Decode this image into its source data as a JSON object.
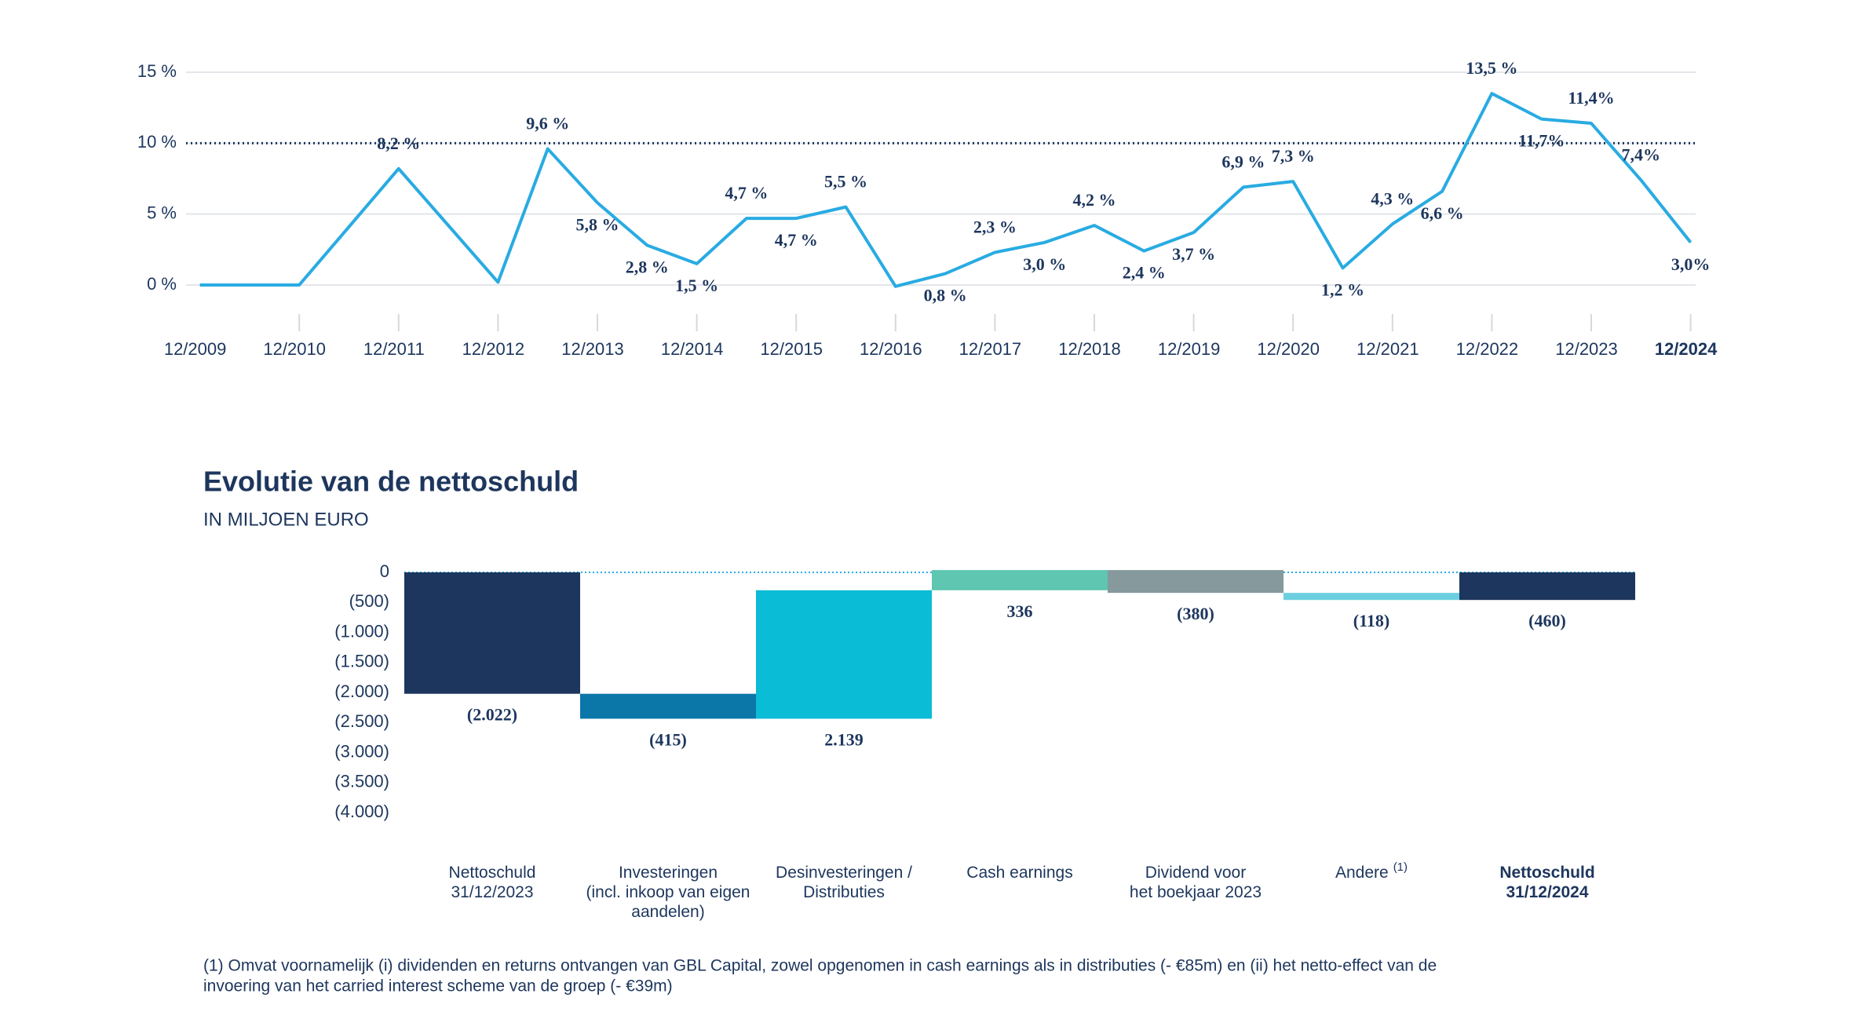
{
  "chart_data": [
    {
      "type": "line",
      "categories": [
        "12/2009",
        null,
        "12/2010",
        null,
        "12/2011",
        null,
        "12/2012",
        null,
        "12/2013",
        null,
        "12/2014",
        null,
        "12/2015",
        null,
        "12/2016",
        null,
        "12/2017",
        null,
        "12/2018",
        null,
        "12/2019",
        null,
        "12/2020",
        null,
        "12/2021",
        null,
        "12/2022",
        null,
        "12/2023",
        null,
        "12/2024"
      ],
      "series": [
        {
          "color": "#29abe2",
          "values": [
            0,
            0,
            0,
            4.1,
            8.2,
            4.2,
            0.2,
            9.6,
            5.8,
            2.8,
            1.5,
            4.7,
            4.7,
            5.5,
            -0.1,
            0.8,
            2.3,
            3.0,
            4.2,
            2.4,
            3.7,
            6.9,
            7.3,
            1.2,
            4.3,
            6.6,
            13.5,
            11.7,
            11.4,
            7.4,
            3.0
          ],
          "value_labels": [
            null,
            null,
            null,
            null,
            "8,2 %",
            null,
            null,
            "9,6 %",
            "5,8 %",
            "2,8 %",
            "1,5 %",
            "4,7 %",
            "4,7 %",
            "5,5 %",
            null,
            "0,8 %",
            "2,3 %",
            "3,0 %",
            "4,2 %",
            "2,4 %",
            "3,7 %",
            "6,9 %",
            "7,3 %",
            "1,2 %",
            "4,3 %",
            "6,6 %",
            "13,5 %",
            "11,7%",
            "11,4%",
            "7,4%",
            "3,0%"
          ]
        }
      ],
      "ylim": [
        -2,
        15
      ],
      "yticks": [
        {
          "value": 0,
          "label": "0 %"
        },
        {
          "value": 5,
          "label": "5 %"
        },
        {
          "value": 10,
          "label": "10 %"
        },
        {
          "value": 15,
          "label": "15 %"
        }
      ],
      "reference_line": 10,
      "grid": true
    },
    {
      "type": "waterfall",
      "title": "Evolutie van de nettoschuld",
      "subtitle": "IN MILJOEN EURO",
      "categories": [
        [
          "Nettoschuld",
          "31/12/2023"
        ],
        [
          "Investeringen",
          "(incl. inkoop van eigen",
          "aandelen)"
        ],
        [
          "Desinvesteringen /",
          "Distributies"
        ],
        [
          "Cash earnings"
        ],
        [
          "Dividend voor",
          "het boekjaar 2023"
        ],
        [
          "Andere"
        ],
        [
          "Nettoschuld",
          "31/12/2024"
        ]
      ],
      "category_superscripts": [
        null,
        null,
        null,
        null,
        null,
        "(1)",
        null
      ],
      "measures": [
        "absolute",
        "relative",
        "relative",
        "relative",
        "relative",
        "relative",
        "total"
      ],
      "values": [
        -2022,
        -415,
        2139,
        336,
        -380,
        -118,
        -460
      ],
      "value_labels": [
        "(2.022)",
        "(415)",
        "2.139",
        "336",
        "(380)",
        "(118)",
        "(460)"
      ],
      "colors": [
        "#1d365d",
        "#0b76a8",
        "#0abcd6",
        "#5ec6b1",
        "#86999c",
        "#6ccfdf",
        "#1d365d"
      ],
      "ylim": [
        -4000,
        50
      ],
      "yticks": [
        0,
        {
          "value": -500,
          "label": "(500)"
        },
        {
          "value": -1000,
          "label": "(1.000)"
        },
        {
          "value": -1500,
          "label": "(1.500)"
        },
        {
          "value": -2000,
          "label": "(2.000)"
        },
        {
          "value": -2500,
          "label": "(2.500)"
        },
        {
          "value": -3000,
          "label": "(3.000)"
        },
        {
          "value": -3500,
          "label": "(3.500)"
        },
        {
          "value": -4000,
          "label": "(4.000)"
        }
      ]
    }
  ],
  "footnote": [
    "(1) Omvat voornamelijk (i) dividenden en returns ontvangen van GBL Capital, zowel opgenomen in cash earnings als in distributies (- €85m) en (ii) het netto-effect van de",
    "invoering van het carried interest scheme van de groep (- €39m)"
  ]
}
